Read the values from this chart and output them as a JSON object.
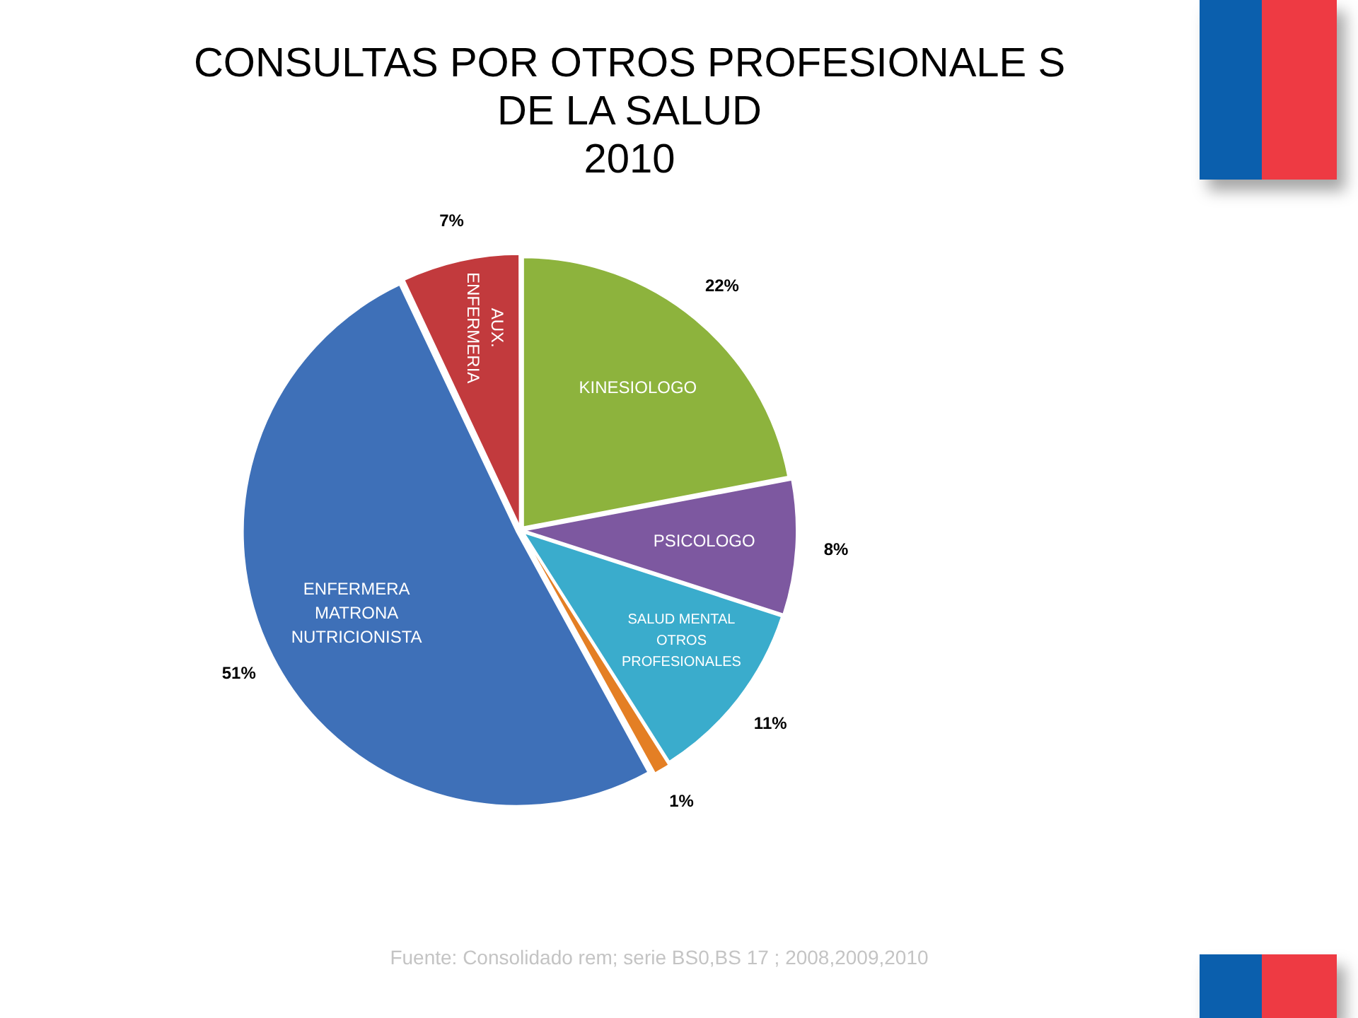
{
  "chart_data": {
    "type": "pie",
    "title": "CONSULTAS POR OTROS PROFESIONALE S DE LA SALUD",
    "subtitle": "2010",
    "categories": [
      "KINESIOLOGO",
      "PSICOLOGO",
      "SALUD MENTAL OTROS PROFESIONALES",
      null,
      "ENFERMERA MATRONA NUTRICIONISTA",
      "AUX. ENFERMERIA"
    ],
    "values": [
      22,
      8,
      11,
      1,
      51,
      7
    ],
    "colors": [
      "#8db33d",
      "#7d58a0",
      "#3aaccc",
      "#e47f24",
      "#3e70b8",
      "#c23a3d"
    ],
    "value_labels": [
      "22%",
      "8%",
      "11%",
      "1%",
      "51%",
      "7%"
    ],
    "annotations": [
      "Fuente: Consolidado rem; serie BS0,BS 17 ; 2008,2009,2010"
    ]
  }
}
